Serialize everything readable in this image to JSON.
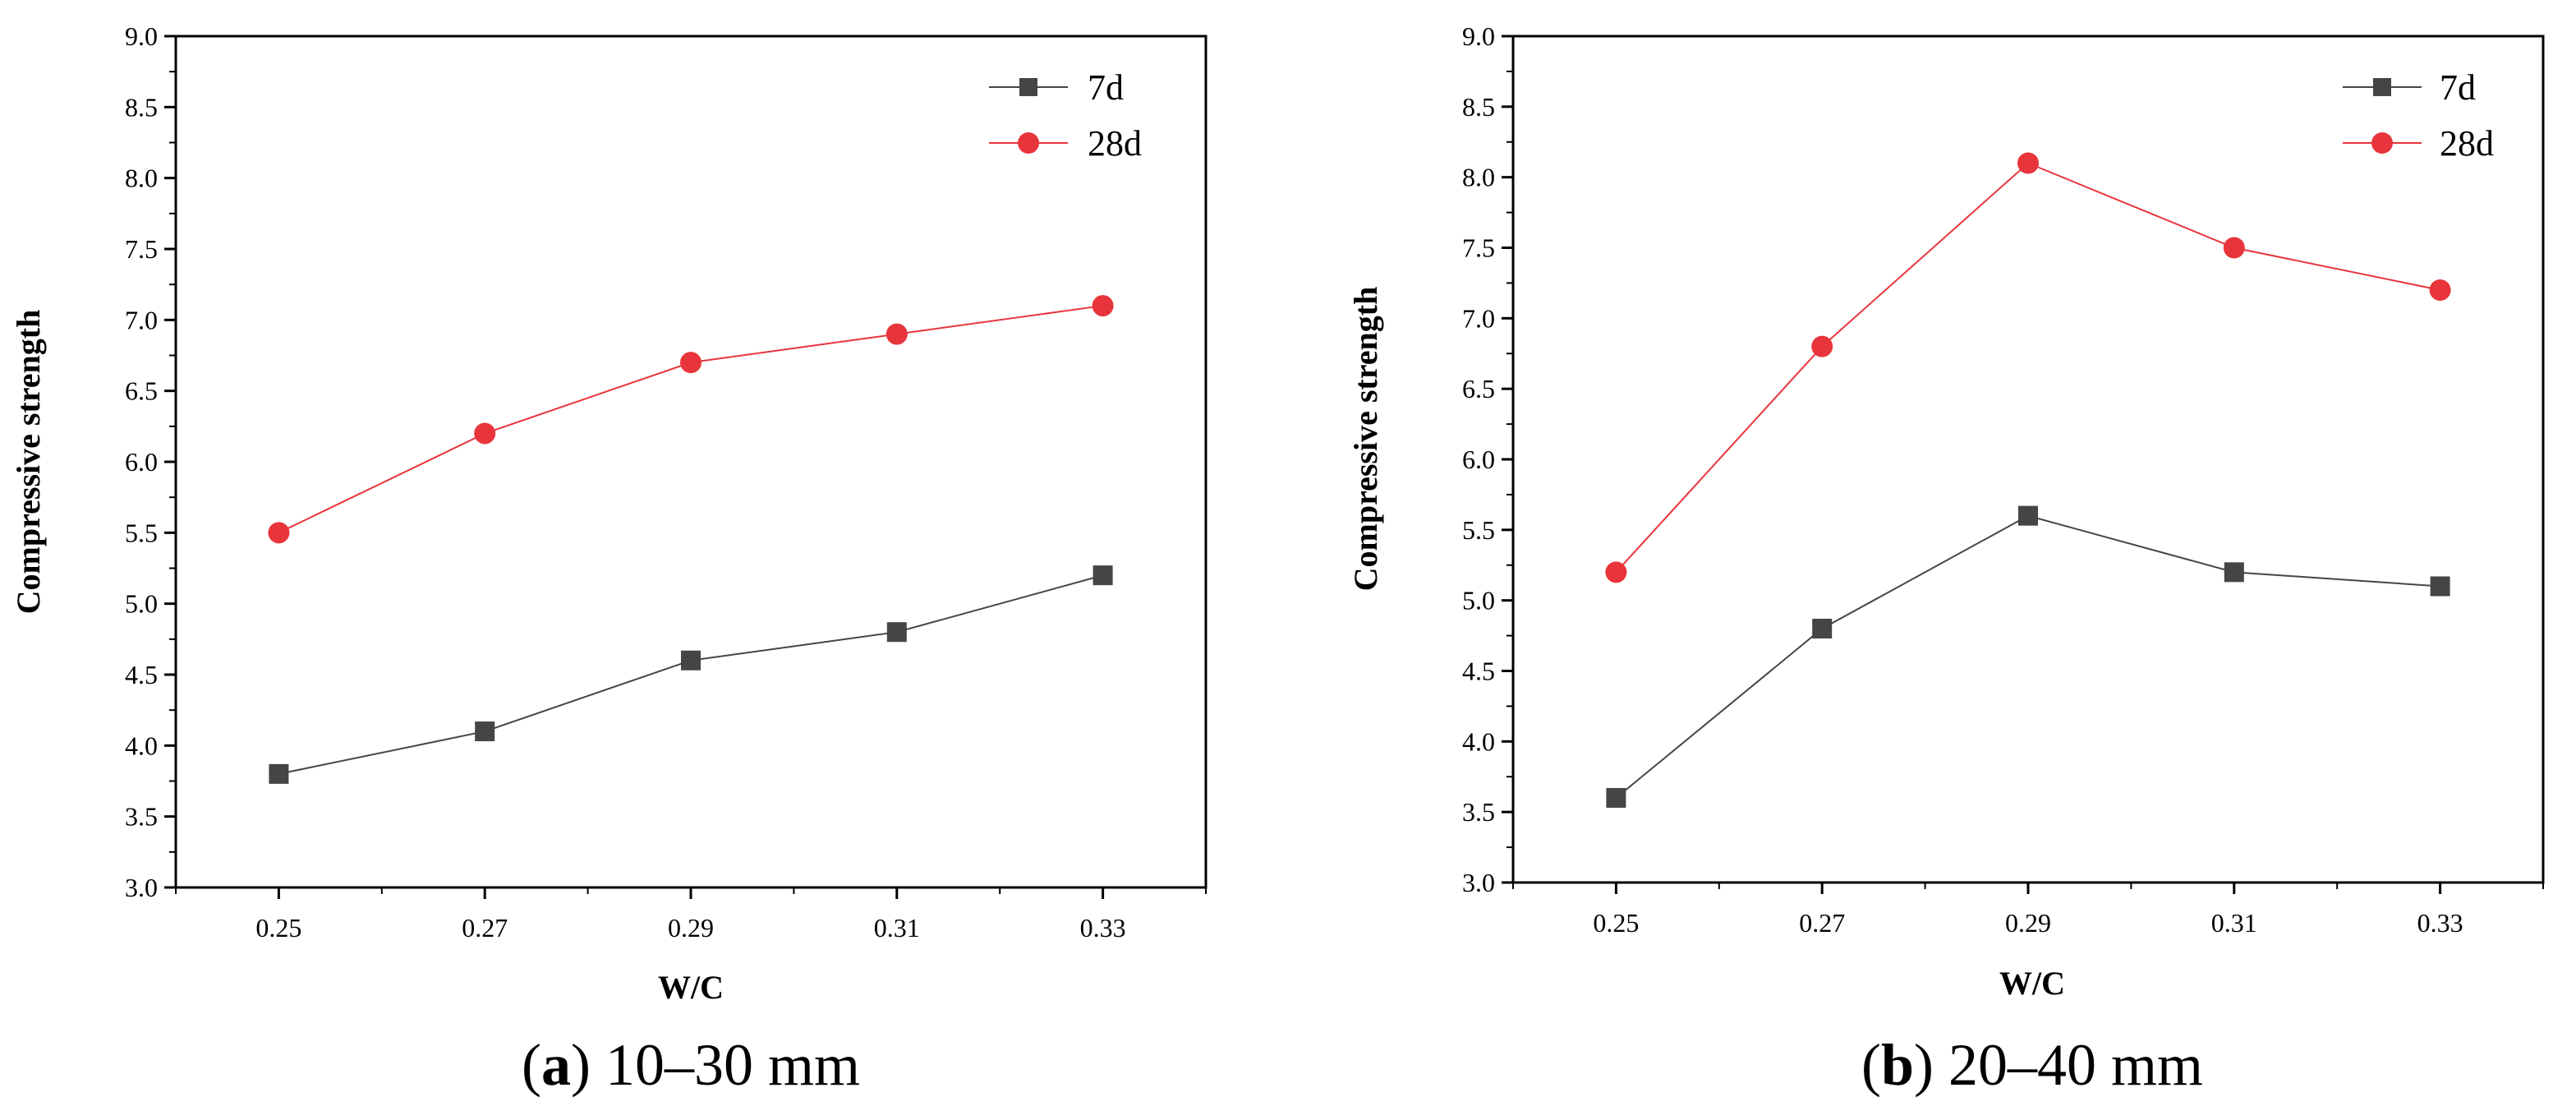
{
  "colors": {
    "series_7d": "#454545",
    "series_28d": "#e8353b",
    "axis": "#000000"
  },
  "chart_data": [
    {
      "type": "line",
      "panel_letter": "a",
      "caption_text": "10–30 mm",
      "xlabel": "W/C",
      "ylabel": "Compressive strength",
      "categories": [
        "0.25",
        "0.27",
        "0.29",
        "0.31",
        "0.33"
      ],
      "x": [
        0.25,
        0.27,
        0.29,
        0.31,
        0.33
      ],
      "xlim": [
        0.24,
        0.34
      ],
      "ylim": [
        3.0,
        9.0
      ],
      "yticks": [
        "3.0",
        "3.5",
        "4.0",
        "4.5",
        "5.0",
        "5.5",
        "6.0",
        "6.5",
        "7.0",
        "7.5",
        "8.0",
        "8.5",
        "9.0"
      ],
      "legend_position": "top-right",
      "series": [
        {
          "name": "7d",
          "marker": "square",
          "values": [
            3.8,
            4.1,
            4.6,
            4.8,
            5.2
          ]
        },
        {
          "name": "28d",
          "marker": "circle",
          "values": [
            5.5,
            6.2,
            6.7,
            6.9,
            7.1
          ]
        }
      ]
    },
    {
      "type": "line",
      "panel_letter": "b",
      "caption_text": "20–40 mm",
      "xlabel": "W/C",
      "ylabel": "Compressive strength",
      "categories": [
        "0.25",
        "0.27",
        "0.29",
        "0.31",
        "0.33"
      ],
      "x": [
        0.25,
        0.27,
        0.29,
        0.31,
        0.33
      ],
      "xlim": [
        0.24,
        0.34
      ],
      "ylim": [
        3.0,
        9.0
      ],
      "yticks": [
        "3.0",
        "3.5",
        "4.0",
        "4.5",
        "5.0",
        "5.5",
        "6.0",
        "6.5",
        "7.0",
        "7.5",
        "8.0",
        "8.5",
        "9.0"
      ],
      "legend_position": "top-right",
      "series": [
        {
          "name": "7d",
          "marker": "square",
          "values": [
            3.6,
            4.8,
            5.6,
            5.2,
            5.1
          ]
        },
        {
          "name": "28d",
          "marker": "circle",
          "values": [
            5.2,
            6.8,
            8.1,
            7.5,
            7.2
          ]
        }
      ]
    }
  ]
}
